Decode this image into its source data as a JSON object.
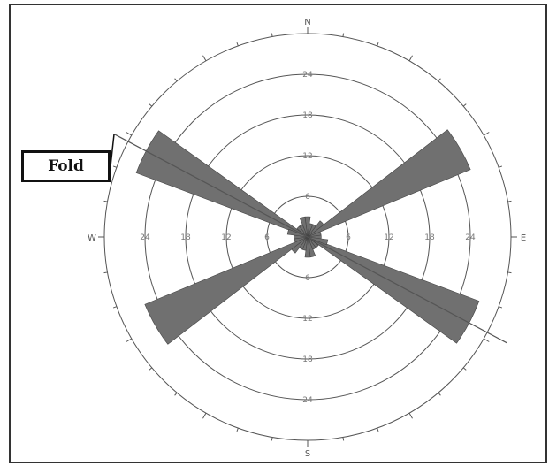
{
  "chart_data": {
    "type": "rose",
    "directions": {
      "north": "N",
      "east": "E",
      "south": "S",
      "west": "W"
    },
    "radial_ticks": [
      6,
      12,
      18,
      24
    ],
    "rlim": [
      0,
      30
    ],
    "petals": [
      {
        "azimuth": 60,
        "value": 26
      },
      {
        "azimuth": 240,
        "value": 26
      },
      {
        "azimuth": 118,
        "value": 27
      },
      {
        "azimuth": 298,
        "value": 27
      },
      {
        "azimuth": 0,
        "value": 3
      },
      {
        "azimuth": 15,
        "value": 2
      },
      {
        "azimuth": 30,
        "value": 2
      },
      {
        "azimuth": 45,
        "value": 3
      },
      {
        "azimuth": 75,
        "value": 2
      },
      {
        "azimuth": 90,
        "value": 2
      },
      {
        "azimuth": 105,
        "value": 3
      },
      {
        "azimuth": 135,
        "value": 2
      },
      {
        "azimuth": 150,
        "value": 2
      },
      {
        "azimuth": 165,
        "value": 3
      },
      {
        "azimuth": 180,
        "value": 3
      },
      {
        "azimuth": 195,
        "value": 2
      },
      {
        "azimuth": 210,
        "value": 2
      },
      {
        "azimuth": 225,
        "value": 3
      },
      {
        "azimuth": 255,
        "value": 2
      },
      {
        "azimuth": 270,
        "value": 2
      },
      {
        "azimuth": 285,
        "value": 3
      },
      {
        "azimuth": 315,
        "value": 2
      },
      {
        "azimuth": 330,
        "value": 2
      },
      {
        "azimuth": 345,
        "value": 3
      }
    ],
    "annotation": {
      "label": "Fold",
      "azimuth": 298
    },
    "colors": {
      "petal": "#707070",
      "grid": "#555555",
      "line": "#555555"
    }
  }
}
